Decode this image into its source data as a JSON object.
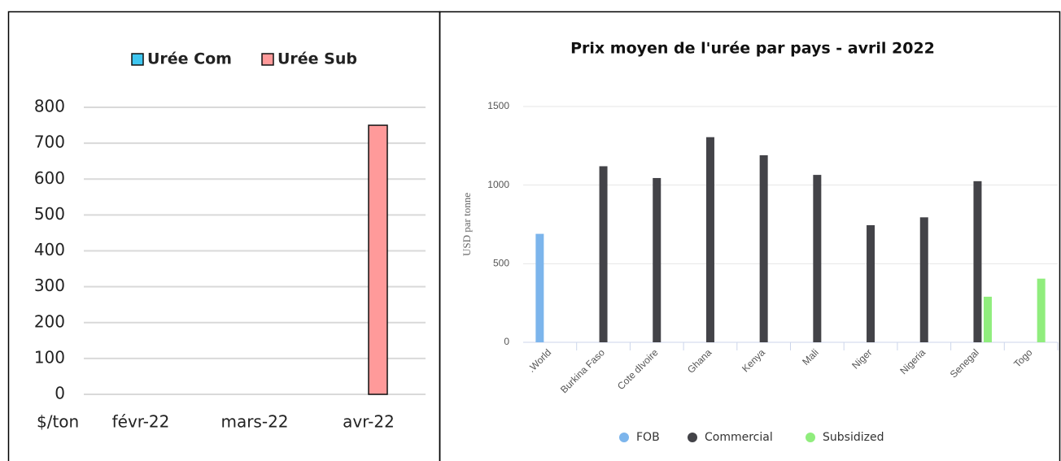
{
  "chart_data": [
    {
      "type": "bar",
      "y_label": "$/ton",
      "categories": [
        "févr-22",
        "mars-22",
        "avr-22"
      ],
      "series": [
        {
          "name": "Urée Com",
          "color": "#3ec6f0",
          "values": [
            null,
            null,
            null
          ]
        },
        {
          "name": "Urée Sub",
          "color": "#ff9a9a",
          "values": [
            null,
            null,
            750
          ]
        }
      ],
      "ylim": [
        0,
        800
      ],
      "yticks": [
        0,
        100,
        200,
        300,
        400,
        500,
        600,
        700,
        800
      ],
      "grid": true,
      "legend": "top"
    },
    {
      "type": "bar",
      "title": "Prix moyen de l'urée par pays - avril 2022",
      "y_label": "USD par tonne",
      "categories": [
        ".World",
        "Burkina Faso",
        "Cote dIvoire",
        "Ghana",
        "Kenya",
        "Mali",
        "Niger",
        "Nigeria",
        "Senegal",
        "Togo"
      ],
      "series": [
        {
          "name": "FOB",
          "color": "#7cb5ec",
          "values": [
            690,
            null,
            null,
            null,
            null,
            null,
            null,
            null,
            null,
            null
          ]
        },
        {
          "name": "Commercial",
          "color": "#434348",
          "values": [
            null,
            1120,
            1045,
            1305,
            1190,
            1065,
            745,
            795,
            1025,
            null
          ]
        },
        {
          "name": "Subsidized",
          "color": "#90ed7d",
          "values": [
            null,
            null,
            null,
            null,
            null,
            null,
            null,
            null,
            290,
            405
          ]
        }
      ],
      "ylim": [
        0,
        1500
      ],
      "yticks": [
        0,
        500,
        1000,
        1500
      ],
      "grid": true,
      "legend": "bottom"
    }
  ]
}
